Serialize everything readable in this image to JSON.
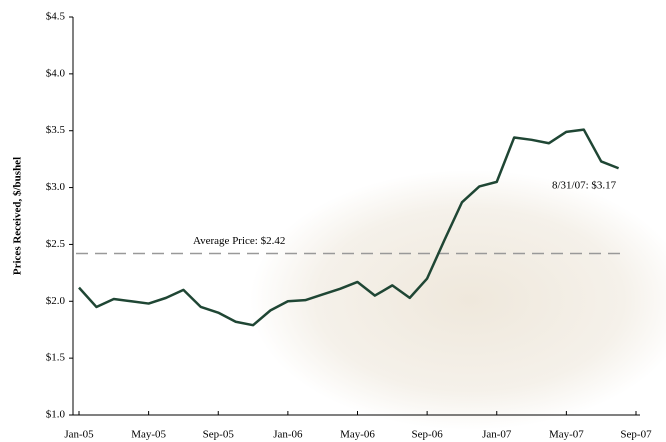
{
  "chart_data": {
    "type": "line",
    "y_label": "Prices Received, $/bushel",
    "categories": [
      "Jan-05",
      null,
      null,
      null,
      "May-05",
      null,
      null,
      null,
      "Sep-05",
      null,
      null,
      null,
      "Jan-06",
      null,
      null,
      null,
      "May-06",
      null,
      null,
      null,
      "Sep-06",
      null,
      null,
      null,
      "Jan-07",
      null,
      null,
      null,
      "May-07",
      null,
      null,
      null,
      "Sep-07"
    ],
    "values": [
      2.12,
      1.95,
      2.02,
      2.0,
      1.98,
      2.03,
      2.1,
      1.95,
      1.9,
      1.82,
      1.79,
      1.92,
      2.0,
      2.01,
      2.06,
      2.11,
      2.17,
      2.05,
      2.14,
      2.03,
      2.2,
      2.54,
      2.87,
      3.01,
      3.05,
      3.44,
      3.42,
      3.39,
      3.49,
      3.51,
      3.23,
      3.17,
      null
    ],
    "color": "#1f4634",
    "ylim": [
      1.0,
      4.5
    ],
    "yticks": [
      {
        "value": 1.0,
        "label": "$1.0"
      },
      {
        "value": 1.5,
        "label": "$1.5"
      },
      {
        "value": 2.0,
        "label": "$2.0"
      },
      {
        "value": 2.5,
        "label": "$2.5"
      },
      {
        "value": 3.0,
        "label": "$3.0"
      },
      {
        "value": 3.5,
        "label": "$3.5"
      },
      {
        "value": 4.0,
        "label": "$4.0"
      },
      {
        "value": 4.5,
        "label": "$4.5"
      }
    ],
    "average": 2.42,
    "average_color": "#999999",
    "annotations": [
      "Average Price: $2.42",
      "8/31/07:  $3.17"
    ]
  }
}
